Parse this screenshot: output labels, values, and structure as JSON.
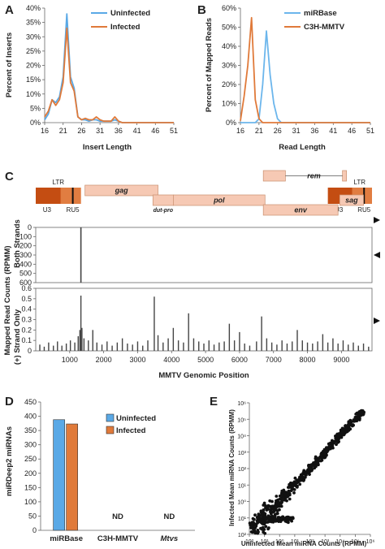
{
  "colors": {
    "uninfected": "#5aa9e6",
    "infected": "#e07a3a",
    "mirbase": "#6cb6ec",
    "c3h": "#e07a3a",
    "gene_fill": "#f6c9b4",
    "ltr_dark": "#c44d12",
    "ltr_mid": "#e98a4e",
    "bars": "#444444",
    "scatter": "#111111"
  },
  "panels": {
    "A": {
      "letter": "A"
    },
    "B": {
      "letter": "B"
    },
    "C": {
      "letter": "C"
    },
    "D": {
      "letter": "D"
    },
    "E": {
      "letter": "E"
    }
  },
  "chart_data": [
    {
      "panel": "A",
      "type": "line",
      "xlabel": "Insert Length",
      "ylabel": "Percent of Inserts",
      "xticks": [
        16,
        21,
        26,
        31,
        36,
        41,
        46,
        51
      ],
      "yticks": [
        "0%",
        "5%",
        "10%",
        "15%",
        "20%",
        "25%",
        "30%",
        "35%",
        "40%"
      ],
      "xlim": [
        16,
        51
      ],
      "ylim": [
        0,
        40
      ],
      "grid": false,
      "legend_position": "top-right",
      "x": [
        16,
        17,
        18,
        19,
        20,
        21,
        22,
        23,
        24,
        25,
        26,
        27,
        28,
        29,
        30,
        31,
        32,
        33,
        34,
        35,
        36,
        37,
        38,
        39,
        40,
        41,
        42,
        43,
        44,
        45,
        46,
        47,
        48,
        49,
        50,
        51
      ],
      "series": [
        {
          "name": "Uninfected",
          "color_key": "uninfected",
          "values": [
            1,
            3,
            8,
            7,
            9,
            16,
            38,
            16,
            12,
            2,
            1,
            1,
            0.5,
            1,
            1,
            0.5,
            0.5,
            0.5,
            0.5,
            1,
            0.5,
            0,
            0,
            0,
            0,
            0,
            0,
            0,
            0,
            0,
            0,
            0,
            0,
            0,
            0,
            0
          ]
        },
        {
          "name": "Infected",
          "color_key": "infected",
          "values": [
            2,
            4,
            8,
            6,
            8,
            14,
            33,
            14,
            11,
            2,
            1,
            1.5,
            1,
            1,
            2,
            1,
            0.5,
            0.5,
            0.5,
            2,
            0.5,
            0,
            0,
            0,
            0,
            0,
            0,
            0,
            0,
            0,
            0,
            0,
            0,
            0,
            0,
            0
          ]
        }
      ]
    },
    {
      "panel": "B",
      "type": "line",
      "xlabel": "Read Length",
      "ylabel": "Percent of Mapped Reads",
      "xticks": [
        16,
        21,
        26,
        31,
        36,
        41,
        46,
        51
      ],
      "yticks": [
        "0%",
        "10%",
        "20%",
        "30%",
        "40%",
        "50%",
        "60%"
      ],
      "xlim": [
        16,
        51
      ],
      "ylim": [
        0,
        60
      ],
      "grid": false,
      "legend_position": "top-right",
      "x": [
        16,
        17,
        18,
        19,
        20,
        21,
        22,
        23,
        24,
        25,
        26,
        27,
        28,
        29,
        30,
        31,
        32,
        33,
        34,
        35,
        36,
        37,
        38,
        39,
        40,
        41,
        42,
        43,
        44,
        45,
        46,
        47,
        48,
        49,
        50,
        51
      ],
      "series": [
        {
          "name": "miRBase",
          "color_key": "mirbase",
          "values": [
            0,
            0,
            0,
            0,
            0,
            2,
            20,
            48,
            25,
            10,
            2,
            0,
            0,
            0,
            0,
            0,
            0,
            0,
            0,
            0,
            0,
            0,
            0,
            0,
            0,
            0,
            0,
            0,
            0,
            0,
            0,
            0,
            0,
            0,
            0,
            0
          ]
        },
        {
          "name": "C3H-MMTV",
          "color_key": "c3h",
          "values": [
            1,
            14,
            30,
            55,
            12,
            2,
            0,
            0,
            0,
            0,
            0,
            0,
            0,
            0,
            0,
            0,
            0,
            0,
            0,
            0,
            0,
            0,
            0,
            0,
            0,
            0,
            0,
            0,
            0,
            0,
            0,
            0,
            0,
            0,
            0,
            0
          ]
        }
      ]
    },
    {
      "panel": "C-map",
      "type": "diagram",
      "genes": [
        {
          "label": "gag",
          "start": 1450,
          "end": 3600,
          "row": 0,
          "style": "gene"
        },
        {
          "label": "dut-pro",
          "start": 3450,
          "end": 4050,
          "row": 1,
          "style": "gene-sm"
        },
        {
          "label": "pol",
          "start": 4050,
          "end": 6750,
          "row": 1,
          "style": "gene"
        },
        {
          "label": "env",
          "start": 6700,
          "end": 8900,
          "row": 2,
          "style": "gene"
        },
        {
          "label": "rem",
          "start": 6700,
          "end": 9150,
          "row": -1,
          "style": "gene",
          "spliced": true
        },
        {
          "label": "sag",
          "start": 8950,
          "end": 9650,
          "row": 1,
          "style": "gene"
        }
      ],
      "ltr_left": {
        "label": "LTR",
        "u3": "U3",
        "ru5": "RU5",
        "start": 0,
        "end": 1330
      },
      "ltr_right": {
        "label": "LTR",
        "u3": "U3",
        "ru5": "RU5",
        "start": 8600,
        "end": 9900
      }
    },
    {
      "panel": "C-both",
      "type": "bar",
      "ylabel": "Both Strands",
      "yticks": [
        0,
        100,
        200,
        300,
        400,
        500,
        600
      ],
      "ylim": [
        0,
        600
      ],
      "inverted": true,
      "bars": [
        {
          "x": 1330,
          "value": 600
        }
      ]
    },
    {
      "panel": "C-plus",
      "type": "bar",
      "ylabel": "(+) Strand Only",
      "yticks": [
        0,
        0.1,
        0.2,
        0.3,
        0.4,
        0.5,
        0.6
      ],
      "ylim": [
        0,
        0.6
      ],
      "xlabel": "MMTV Genomic Position",
      "xticks": [
        1000,
        2000,
        3000,
        4000,
        5000,
        6000,
        7000,
        8000,
        9000
      ],
      "xlim": [
        0,
        9900
      ],
      "shared_ylabel": "Mapped Read Counts (RPMM)",
      "bars": [
        {
          "x": 120,
          "value": 0.06
        },
        {
          "x": 250,
          "value": 0.04
        },
        {
          "x": 380,
          "value": 0.08
        },
        {
          "x": 520,
          "value": 0.05
        },
        {
          "x": 640,
          "value": 0.09
        },
        {
          "x": 770,
          "value": 0.05
        },
        {
          "x": 900,
          "value": 0.07
        },
        {
          "x": 1020,
          "value": 0.1
        },
        {
          "x": 1150,
          "value": 0.08
        },
        {
          "x": 1250,
          "value": 0.14
        },
        {
          "x": 1300,
          "value": 0.2
        },
        {
          "x": 1330,
          "value": 0.53
        },
        {
          "x": 1360,
          "value": 0.22
        },
        {
          "x": 1420,
          "value": 0.12
        },
        {
          "x": 1550,
          "value": 0.1
        },
        {
          "x": 1680,
          "value": 0.2
        },
        {
          "x": 1800,
          "value": 0.08
        },
        {
          "x": 1950,
          "value": 0.06
        },
        {
          "x": 2100,
          "value": 0.09
        },
        {
          "x": 2250,
          "value": 0.05
        },
        {
          "x": 2400,
          "value": 0.08
        },
        {
          "x": 2550,
          "value": 0.12
        },
        {
          "x": 2700,
          "value": 0.07
        },
        {
          "x": 2850,
          "value": 0.06
        },
        {
          "x": 3000,
          "value": 0.09
        },
        {
          "x": 3150,
          "value": 0.05
        },
        {
          "x": 3300,
          "value": 0.1
        },
        {
          "x": 3490,
          "value": 0.52
        },
        {
          "x": 3600,
          "value": 0.15
        },
        {
          "x": 3750,
          "value": 0.08
        },
        {
          "x": 3900,
          "value": 0.12
        },
        {
          "x": 4050,
          "value": 0.22
        },
        {
          "x": 4200,
          "value": 0.1
        },
        {
          "x": 4350,
          "value": 0.08
        },
        {
          "x": 4500,
          "value": 0.36
        },
        {
          "x": 4650,
          "value": 0.12
        },
        {
          "x": 4800,
          "value": 0.09
        },
        {
          "x": 4950,
          "value": 0.07
        },
        {
          "x": 5100,
          "value": 0.1
        },
        {
          "x": 5250,
          "value": 0.06
        },
        {
          "x": 5400,
          "value": 0.08
        },
        {
          "x": 5550,
          "value": 0.09
        },
        {
          "x": 5700,
          "value": 0.26
        },
        {
          "x": 5850,
          "value": 0.1
        },
        {
          "x": 6000,
          "value": 0.18
        },
        {
          "x": 6150,
          "value": 0.07
        },
        {
          "x": 6300,
          "value": 0.05
        },
        {
          "x": 6500,
          "value": 0.09
        },
        {
          "x": 6650,
          "value": 0.33
        },
        {
          "x": 6800,
          "value": 0.12
        },
        {
          "x": 6950,
          "value": 0.08
        },
        {
          "x": 7100,
          "value": 0.06
        },
        {
          "x": 7250,
          "value": 0.1
        },
        {
          "x": 7400,
          "value": 0.07
        },
        {
          "x": 7550,
          "value": 0.09
        },
        {
          "x": 7700,
          "value": 0.2
        },
        {
          "x": 7850,
          "value": 0.1
        },
        {
          "x": 8000,
          "value": 0.08
        },
        {
          "x": 8150,
          "value": 0.07
        },
        {
          "x": 8300,
          "value": 0.09
        },
        {
          "x": 8450,
          "value": 0.16
        },
        {
          "x": 8600,
          "value": 0.08
        },
        {
          "x": 8750,
          "value": 0.12
        },
        {
          "x": 8900,
          "value": 0.07
        },
        {
          "x": 9050,
          "value": 0.1
        },
        {
          "x": 9200,
          "value": 0.06
        },
        {
          "x": 9350,
          "value": 0.08
        },
        {
          "x": 9500,
          "value": 0.05
        },
        {
          "x": 9650,
          "value": 0.07
        },
        {
          "x": 9800,
          "value": 0.04
        }
      ]
    },
    {
      "panel": "D",
      "type": "bar",
      "ylabel": "miRDeep2 miRNAs",
      "yticks": [
        0,
        50,
        100,
        150,
        200,
        250,
        300,
        350,
        400,
        450
      ],
      "ylim": [
        0,
        450
      ],
      "categories": [
        "miRBase",
        "C3H-MMTV",
        "Mtvs"
      ],
      "legend_position": "top-right",
      "series": [
        {
          "name": "Uninfected",
          "color_key": "uninfected",
          "values": [
            388,
            0,
            0
          ]
        },
        {
          "name": "Infected",
          "color_key": "infected",
          "values": [
            373,
            0,
            0
          ]
        }
      ],
      "annotations": [
        "ND",
        "ND"
      ]
    },
    {
      "panel": "E",
      "type": "scatter",
      "xlabel": "Uninfected Mean miRNA Counts (RPMM)",
      "ylabel": "Infected Mean miRNA Counts (RPMM)",
      "log_scale": true,
      "xticks": [
        "10²",
        "10¹",
        "10⁰",
        "10¹",
        "10²",
        "10³",
        "10⁴",
        "10⁵",
        "10⁶"
      ],
      "yticks": [
        "10²",
        "10¹",
        "10⁰",
        "10¹",
        "10²",
        "10³",
        "10⁴",
        "10⁵",
        "10⁶"
      ],
      "xlim": [
        0.01,
        1000000
      ],
      "ylim": [
        0.01,
        1000000
      ]
    }
  ]
}
